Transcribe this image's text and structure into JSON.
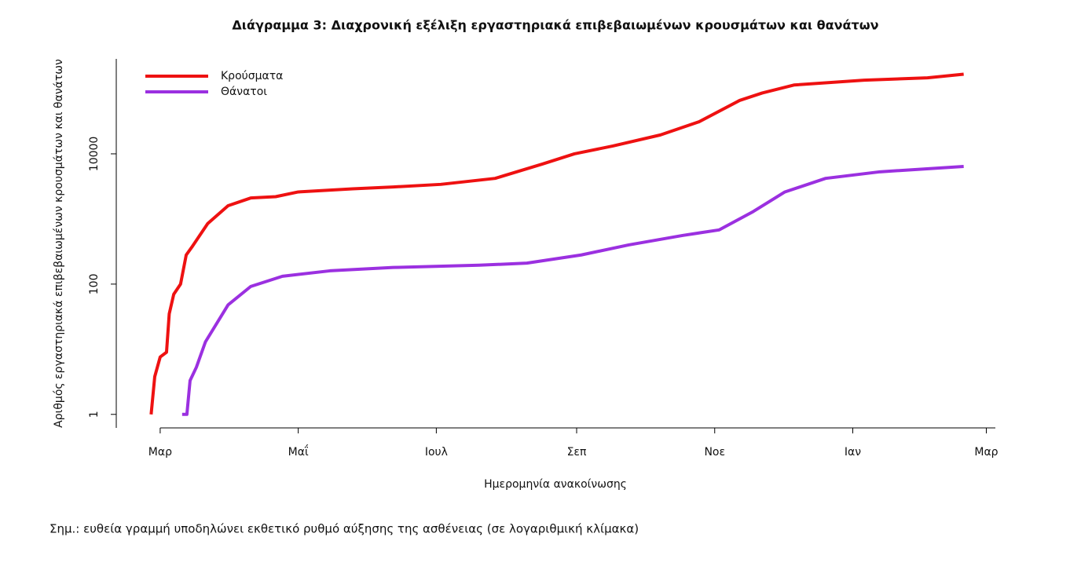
{
  "chart_data": {
    "type": "line",
    "log_y": true,
    "title": "Διάγραμμα 3: Διαχρονική εξέλιξη εργαστηριακά επιβεβαιωμένων κρουσμάτων και θανάτων",
    "x_label": "Ημερομηνία ανακοίνωσης",
    "y_label": "Αριθμός εργαστηριακά επιβεβαιωμένων κρουσμάτων και θανάτων",
    "note": "Σημ.: ευθεία γραμμή υποδηλώνει εκθετικό ρυθμό αύξησης της ασθένειας (σε λογαριθμική κλίμακα)",
    "legend": "top-left",
    "xlim": [
      -19.4,
      369
    ],
    "xticks": [
      {
        "value": 0,
        "label": "Μαρ"
      },
      {
        "value": 61,
        "label": "Μαΐ"
      },
      {
        "value": 122,
        "label": "Ιουλ"
      },
      {
        "value": 184,
        "label": "Σεπ"
      },
      {
        "value": 245,
        "label": "Νοε"
      },
      {
        "value": 306,
        "label": "Ιαν"
      },
      {
        "value": 365,
        "label": "Μαρ"
      }
    ],
    "ylim": [
      0.62,
      287000
    ],
    "yticks": [
      1,
      100,
      10000
    ],
    "series": [
      {
        "name": "Κρούσματα",
        "color": "#ee1111",
        "x": [
          -4,
          -2.4,
          0,
          2.8,
          4,
          6,
          9,
          11.5,
          14,
          21,
          30,
          40,
          51,
          61,
          85,
          103,
          124,
          148,
          169,
          183,
          200,
          221,
          238,
          256,
          266,
          280,
          311,
          339,
          355
        ],
        "values": [
          1,
          3.8,
          7.6,
          9,
          35,
          70,
          100,
          280,
          370,
          850,
          1600,
          2100,
          2200,
          2600,
          2900,
          3100,
          3400,
          4200,
          7000,
          10000,
          13200,
          19500,
          31000,
          66000,
          86000,
          114000,
          135000,
          147000,
          167000
        ]
      },
      {
        "name": "Θάνατοι",
        "color": "#9b30e0",
        "x": [
          9.7,
          11.8,
          13.2,
          16,
          20,
          30,
          40,
          54,
          75,
          103,
          141,
          162,
          186,
          207,
          231,
          247,
          262,
          276,
          294,
          318,
          355
        ],
        "values": [
          1,
          1,
          3.3,
          5.3,
          13,
          48,
          92,
          132,
          160,
          180,
          195,
          210,
          280,
          400,
          560,
          680,
          1300,
          2600,
          4200,
          5300,
          6400
        ]
      }
    ]
  }
}
